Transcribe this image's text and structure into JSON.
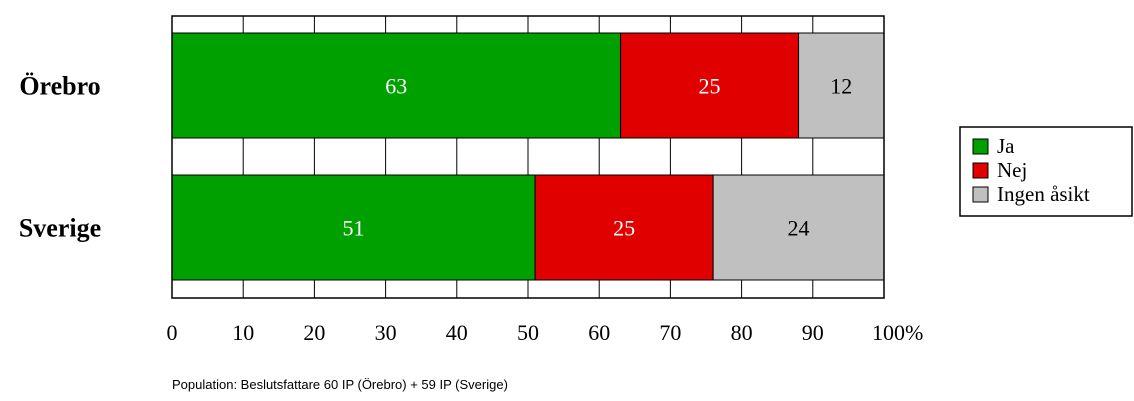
{
  "chart_data": {
    "type": "bar",
    "orientation": "horizontal",
    "stacked": true,
    "categories": [
      "Örebro",
      "Sverige"
    ],
    "series": [
      {
        "name": "Ja",
        "values": [
          63,
          51
        ],
        "color": "#00A000",
        "label_color": "#ffffff"
      },
      {
        "name": "Nej",
        "values": [
          25,
          25
        ],
        "color": "#E00000",
        "label_color": "#ffffff"
      },
      {
        "name": "Ingen åsikt",
        "values": [
          12,
          24
        ],
        "color": "#C0C0C0",
        "label_color": "#000000"
      }
    ],
    "xlim": [
      0,
      100
    ],
    "x_ticks": [
      {
        "value": 0,
        "label": "0"
      },
      {
        "value": 10,
        "label": "10"
      },
      {
        "value": 20,
        "label": "20"
      },
      {
        "value": 30,
        "label": "30"
      },
      {
        "value": 40,
        "label": "40"
      },
      {
        "value": 50,
        "label": "50"
      },
      {
        "value": 60,
        "label": "60"
      },
      {
        "value": 70,
        "label": "70"
      },
      {
        "value": 80,
        "label": "80"
      },
      {
        "value": 90,
        "label": "90"
      },
      {
        "value": 100,
        "label": "100%"
      }
    ],
    "grid": true,
    "legend_position": "right",
    "footnote": "Population: Beslutsfattare 60 IP (Örebro) + 59 IP (Sverige)"
  }
}
